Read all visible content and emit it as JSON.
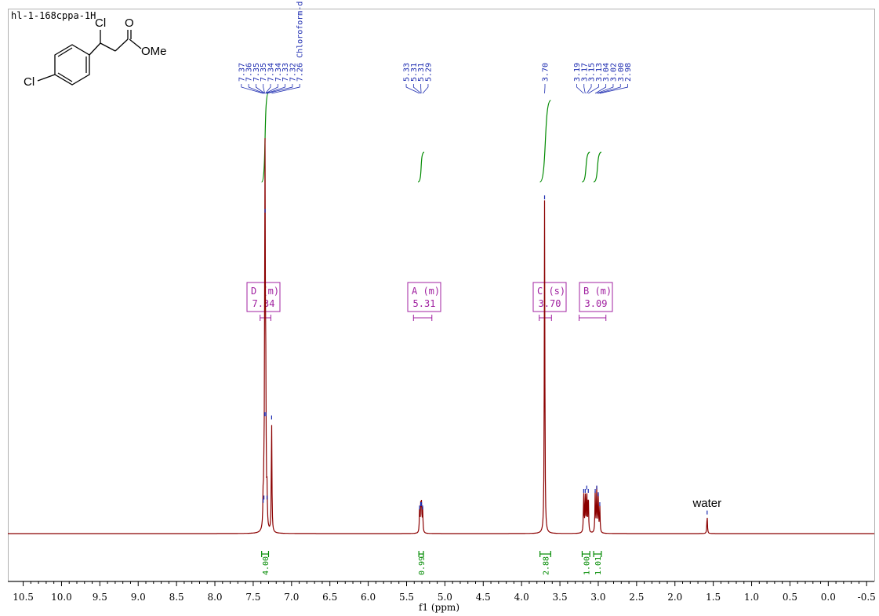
{
  "chart_data": {
    "type": "line",
    "title": "hl-1-168cppa-1H",
    "xlabel": "f1 (ppm)",
    "xlim": [
      10.7,
      -0.6
    ],
    "ticks": [
      {
        "v": 10.5,
        "label": "10.5"
      },
      {
        "v": 10.0,
        "label": "10.0"
      },
      {
        "v": 9.5,
        "label": "9.5"
      },
      {
        "v": 9.0,
        "label": "9.0"
      },
      {
        "v": 8.5,
        "label": "8.5"
      },
      {
        "v": 8.0,
        "label": "8.0"
      },
      {
        "v": 7.5,
        "label": "7.5"
      },
      {
        "v": 7.0,
        "label": "7.0"
      },
      {
        "v": 6.5,
        "label": "6.5"
      },
      {
        "v": 6.0,
        "label": "6.0"
      },
      {
        "v": 5.5,
        "label": "5.5"
      },
      {
        "v": 5.0,
        "label": "5.0"
      },
      {
        "v": 4.5,
        "label": "4.5"
      },
      {
        "v": 4.0,
        "label": "4.0"
      },
      {
        "v": 3.5,
        "label": "3.5"
      },
      {
        "v": 3.0,
        "label": "3.0"
      },
      {
        "v": 2.5,
        "label": "2.5"
      },
      {
        "v": 2.0,
        "label": "2.0"
      },
      {
        "v": 1.5,
        "label": "1.5"
      },
      {
        "v": 1.0,
        "label": "1.0"
      },
      {
        "v": 0.5,
        "label": "0.5"
      },
      {
        "v": 0.0,
        "label": "0.0"
      },
      {
        "v": -0.5,
        "label": "-0.5"
      }
    ],
    "peaks": [
      {
        "ppm": 7.37,
        "h": 0.09
      },
      {
        "ppm": 7.36,
        "h": 0.1
      },
      {
        "ppm": 7.35,
        "h": 0.35
      },
      {
        "ppm": 7.345,
        "h": 0.96
      },
      {
        "ppm": 7.335,
        "h": 0.35
      },
      {
        "ppm": 7.32,
        "h": 0.1
      },
      {
        "ppm": 7.26,
        "h": 0.34
      },
      {
        "ppm": 5.33,
        "h": 0.07
      },
      {
        "ppm": 5.315,
        "h": 0.08
      },
      {
        "ppm": 5.305,
        "h": 0.08
      },
      {
        "ppm": 5.29,
        "h": 0.07
      },
      {
        "ppm": 3.7,
        "h": 1.0
      },
      {
        "ppm": 3.19,
        "h": 0.12
      },
      {
        "ppm": 3.17,
        "h": 0.12
      },
      {
        "ppm": 3.15,
        "h": 0.13
      },
      {
        "ppm": 3.13,
        "h": 0.12
      },
      {
        "ppm": 3.04,
        "h": 0.12
      },
      {
        "ppm": 3.02,
        "h": 0.13
      },
      {
        "ppm": 3.0,
        "h": 0.11
      },
      {
        "ppm": 2.98,
        "h": 0.08
      },
      {
        "ppm": 1.58,
        "h": 0.055
      }
    ],
    "peak_label_groups": [
      {
        "labels": [
          "7.37",
          "7.36",
          "7.35",
          "7.35",
          "7.34",
          "7.34",
          "7.33",
          "7.32",
          "7.26 Chloroform-d"
        ],
        "ppm": [
          7.37,
          7.36,
          7.35,
          7.35,
          7.34,
          7.34,
          7.33,
          7.32,
          7.26
        ]
      },
      {
        "labels": [
          "5.33",
          "5.31",
          "5.31",
          "5.29"
        ],
        "ppm": [
          5.33,
          5.31,
          5.31,
          5.29
        ]
      },
      {
        "labels": [
          "3.70"
        ],
        "ppm": [
          3.7
        ]
      },
      {
        "labels": [
          "3.19",
          "3.17",
          "3.15",
          "3.13",
          "3.04",
          "3.02",
          "3.00",
          "2.98"
        ],
        "ppm": [
          3.19,
          3.17,
          3.15,
          3.13,
          3.04,
          3.02,
          3.0,
          2.98
        ]
      }
    ],
    "multiplets": [
      {
        "name": "D",
        "type": "(m)",
        "shift": "7.34",
        "from": 7.41,
        "to": 7.27
      },
      {
        "name": "A",
        "type": "(m)",
        "shift": "5.31",
        "from": 5.41,
        "to": 5.17
      },
      {
        "name": "C",
        "type": "(s)",
        "shift": "3.70",
        "from": 3.77,
        "to": 3.61
      },
      {
        "name": "B",
        "type": "(m)",
        "shift": "3.09",
        "from": 3.25,
        "to": 2.9
      }
    ],
    "integrals": [
      {
        "value": "4.00",
        "from": 7.39,
        "to": 7.3
      },
      {
        "value": "0.99",
        "from": 5.34,
        "to": 5.28
      },
      {
        "value": "2.88",
        "from": 3.76,
        "to": 3.62
      },
      {
        "value": "1.00",
        "from": 3.21,
        "to": 3.11
      },
      {
        "value": "1.01",
        "from": 3.06,
        "to": 2.96
      }
    ],
    "annotations": [
      {
        "text": "water",
        "ppm": 1.58
      }
    ],
    "structure_labels": [
      "Cl",
      "O",
      "OMe",
      "Cl"
    ],
    "colors": {
      "spectrum": "#8b0000",
      "peak_labels": "#1c2bb0",
      "multiplet": "#a020a0",
      "integral": "#008a00",
      "axis": "#000000"
    }
  }
}
